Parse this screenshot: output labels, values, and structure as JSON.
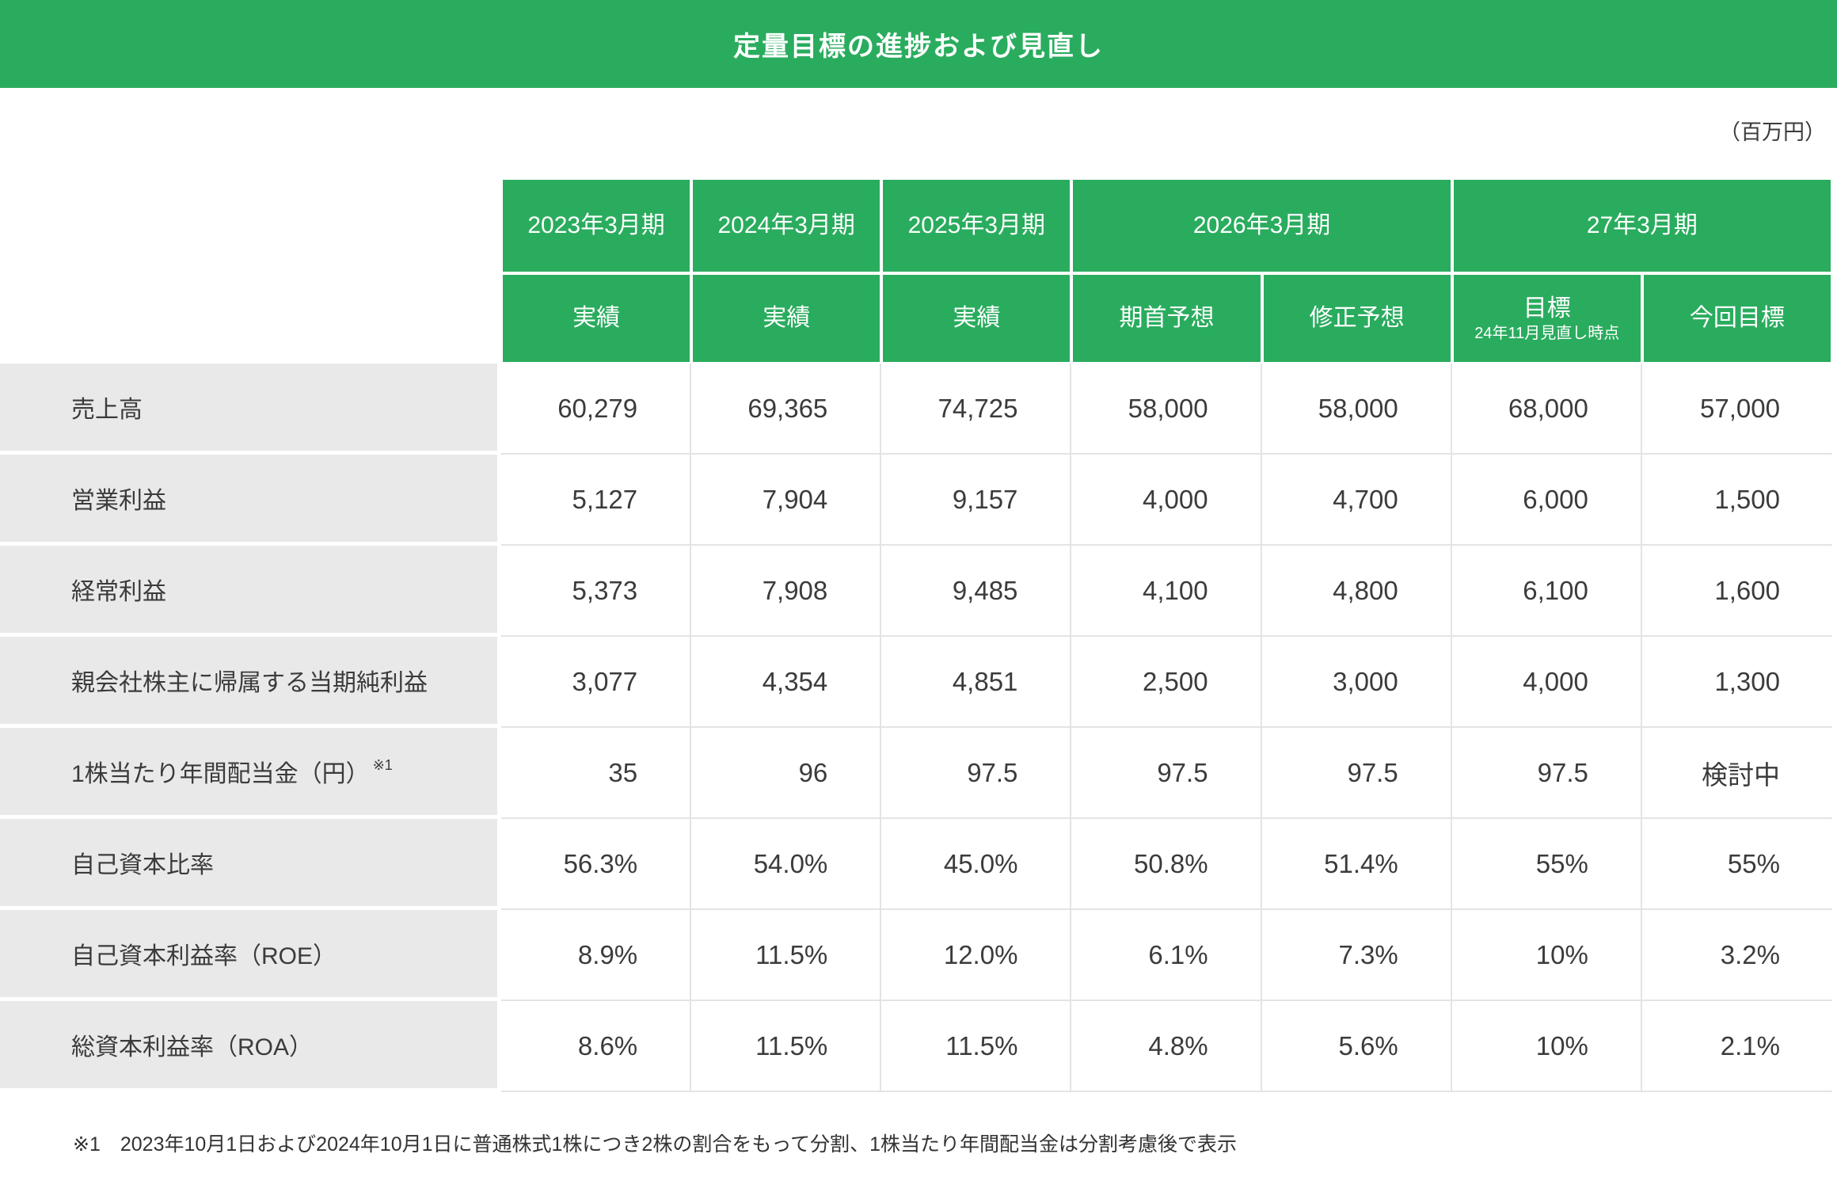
{
  "title": "定量目標の進捗および見直し",
  "unit_label": "（百万円）",
  "table": {
    "col_groups": [
      {
        "label": "2023年3月期",
        "span": 1
      },
      {
        "label": "2024年3月期",
        "span": 1
      },
      {
        "label": "2025年3月期",
        "span": 1
      },
      {
        "label": "2026年3月期",
        "span": 2
      },
      {
        "label": "27年3月期",
        "span": 2
      }
    ],
    "sub_headers": [
      {
        "label": "実績"
      },
      {
        "label": "実績"
      },
      {
        "label": "実績"
      },
      {
        "label": "期首予想"
      },
      {
        "label": "修正予想"
      },
      {
        "label": "目標",
        "sub": "24年11月見直し時点"
      },
      {
        "label": "今回目標"
      }
    ],
    "rows": [
      {
        "label": "売上高",
        "values": [
          "60,279",
          "69,365",
          "74,725",
          "58,000",
          "58,000",
          "68,000",
          "57,000"
        ]
      },
      {
        "label": "営業利益",
        "values": [
          "5,127",
          "7,904",
          "9,157",
          "4,000",
          "4,700",
          "6,000",
          "1,500"
        ]
      },
      {
        "label": "経常利益",
        "values": [
          "5,373",
          "7,908",
          "9,485",
          "4,100",
          "4,800",
          "6,100",
          "1,600"
        ]
      },
      {
        "label": "親会社株主に帰属する当期純利益",
        "values": [
          "3,077",
          "4,354",
          "4,851",
          "2,500",
          "3,000",
          "4,000",
          "1,300"
        ]
      },
      {
        "label": "1株当たり年間配当金（円）",
        "label_sup": "※1",
        "values": [
          "35",
          "96",
          "97.5",
          "97.5",
          "97.5",
          "97.5",
          "検討中"
        ]
      },
      {
        "label": "自己資本比率",
        "values": [
          "56.3%",
          "54.0%",
          "45.0%",
          "50.8%",
          "51.4%",
          "55%",
          "55%"
        ]
      },
      {
        "label": "自己資本利益率（ROE）",
        "values": [
          "8.9%",
          "11.5%",
          "12.0%",
          "6.1%",
          "7.3%",
          "10%",
          "3.2%"
        ]
      },
      {
        "label": "総資本利益率（ROA）",
        "values": [
          "8.6%",
          "11.5%",
          "11.5%",
          "4.8%",
          "5.6%",
          "10%",
          "2.1%"
        ]
      }
    ]
  },
  "footnote": "※1　2023年10月1日および2024年10月1日に普通株式1株につき2株の割合をもって分割、1株当たり年間配当金は分割考慮後で表示",
  "colors": {
    "accent_green": "#2aac5e",
    "row_label_bg": "#e9e9e9",
    "grid_line": "#e4e4e4",
    "text": "#3b3b3b"
  }
}
